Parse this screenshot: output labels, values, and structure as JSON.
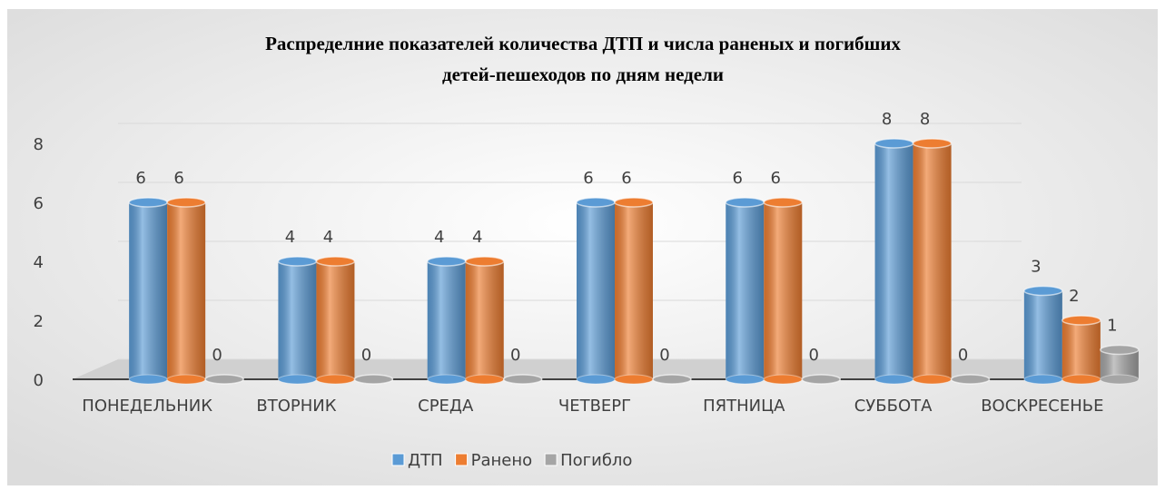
{
  "chart_data": {
    "type": "bar",
    "title": [
      "Распределние показателей количества ДТП и числа раненых и погибших",
      "детей-пешеходов по дням недели"
    ],
    "categories": [
      "ПОНЕДЕЛЬНИК",
      "ВТОРНИК",
      "СРЕДА",
      "ЧЕТВЕРГ",
      "ПЯТНИЦА",
      "СУББОТА",
      "ВОСКРЕСЕНЬЕ"
    ],
    "series": [
      {
        "name": "ДТП",
        "color": "#5b9bd5",
        "values": [
          6,
          4,
          4,
          6,
          6,
          8,
          3
        ]
      },
      {
        "name": "Ранено",
        "color": "#ed7d31",
        "values": [
          6,
          4,
          4,
          6,
          6,
          8,
          2
        ]
      },
      {
        "name": "Погибло",
        "color": "#a5a5a5",
        "values": [
          0,
          0,
          0,
          0,
          0,
          0,
          1
        ]
      }
    ],
    "ylim": [
      0,
      8
    ],
    "yticks": [
      0,
      2,
      4,
      6,
      8
    ],
    "grid": true,
    "legend": "bottom"
  }
}
